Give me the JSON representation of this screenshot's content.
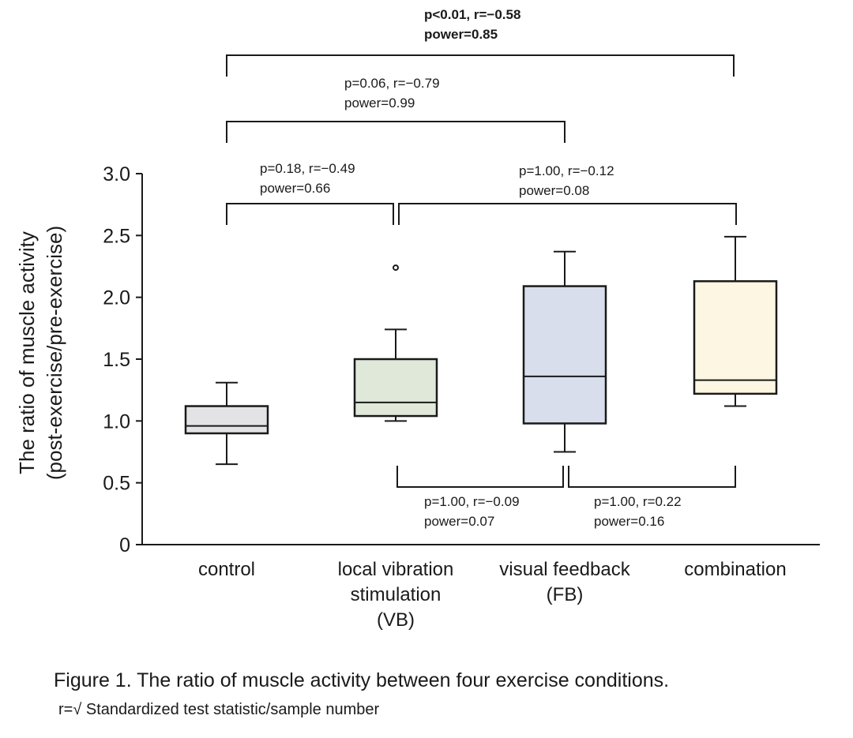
{
  "chart_data": {
    "type": "box",
    "ylabel_lines": [
      "The ratio of muscle activity",
      "(post-exercise/pre-exercise)"
    ],
    "ylim": [
      0,
      3.0
    ],
    "yticks": [
      0,
      0.5,
      1.0,
      1.5,
      2.0,
      2.5,
      3.0
    ],
    "ytick_labels": [
      "0",
      "0.5",
      "1.0",
      "1.5",
      "2.0",
      "2.5",
      "3.0"
    ],
    "grid": false,
    "categories": [
      {
        "lines": [
          "control"
        ],
        "fill": "#e3e3e6",
        "min": 0.65,
        "q1": 0.9,
        "median": 0.96,
        "q3": 1.12,
        "max": 1.31,
        "outliers": []
      },
      {
        "lines": [
          "local vibration",
          "stimulation",
          "(VB)"
        ],
        "fill": "#e0e8d9",
        "min": 1.0,
        "q1": 1.04,
        "median": 1.15,
        "q3": 1.5,
        "max": 1.74,
        "outliers": [
          2.24
        ]
      },
      {
        "lines": [
          "visual feedback",
          "(FB)"
        ],
        "fill": "#d8deeb",
        "min": 0.75,
        "q1": 0.98,
        "median": 1.36,
        "q3": 2.09,
        "max": 2.37,
        "outliers": []
      },
      {
        "lines": [
          "combination"
        ],
        "fill": "#fdf6e2",
        "min": 1.12,
        "q1": 1.22,
        "median": 1.33,
        "q3": 2.13,
        "max": 2.49,
        "outliers": []
      }
    ],
    "comparisons": [
      {
        "from": 0,
        "to": 3,
        "lines": [
          "p<0.01, r=−0.58",
          "power=0.85"
        ],
        "bold": true
      },
      {
        "from": 0,
        "to": 2,
        "lines": [
          "p=0.06, r=−0.79",
          "power=0.99"
        ],
        "bold": false
      },
      {
        "from": 0,
        "to": 1,
        "lines": [
          "p=0.18, r=−0.49",
          "power=0.66"
        ],
        "bold": false
      },
      {
        "from": 1,
        "to": 3,
        "lines": [
          "p=1.00, r=−0.12",
          "power=0.08"
        ],
        "bold": false
      },
      {
        "from": 1,
        "to": 2,
        "lines": [
          "p=1.00, r=−0.09",
          "power=0.07"
        ],
        "bold": false
      },
      {
        "from": 2,
        "to": 3,
        "lines": [
          "p=1.00, r=0.22",
          "power=0.16"
        ],
        "bold": false
      }
    ]
  },
  "caption": {
    "title": "Figure 1. The ratio of muscle activity between four exercise conditions.",
    "formula": "r=√ Standardized test statistic/sample number"
  }
}
